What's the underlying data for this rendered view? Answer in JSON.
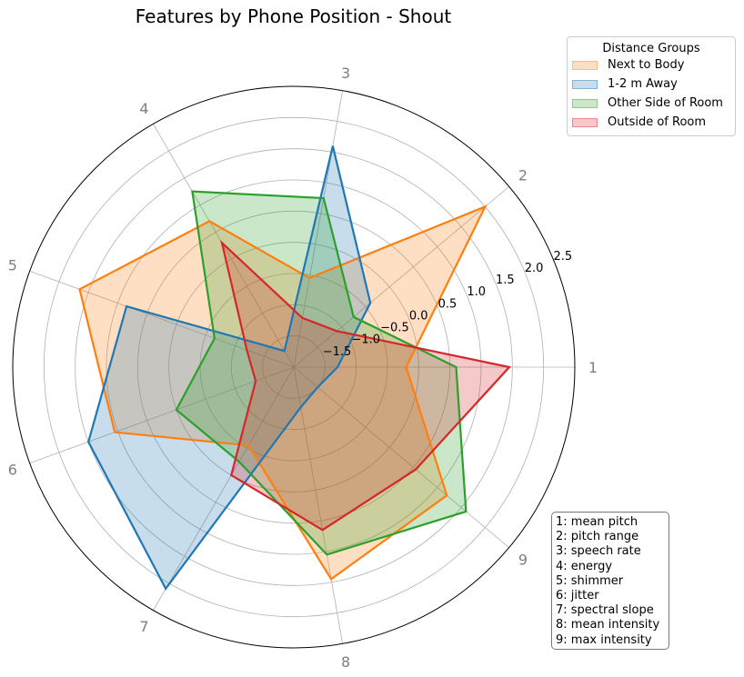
{
  "chart_data": {
    "type": "radar",
    "title": "Features by Phone Position - Shout",
    "axes": [
      "1",
      "2",
      "3",
      "4",
      "5",
      "6",
      "7",
      "8",
      "9"
    ],
    "radial_range": [
      -2.0,
      2.5
    ],
    "radial_ticks": [
      "−1.5",
      "−1.0",
      "−0.5",
      "0.0",
      "0.5",
      "1.0",
      "1.5",
      "2.0",
      "2.5"
    ],
    "radial_tick_values": [
      -1.5,
      -1.0,
      -0.5,
      0.0,
      0.5,
      1.0,
      1.5,
      2.0,
      2.5
    ],
    "grid": true,
    "legend": {
      "title": "Distance Groups",
      "placement": "top-right"
    },
    "series": [
      {
        "name": "Next to Body",
        "color": "#ff7f0e",
        "values": [
          -0.2,
          2.0,
          -0.55,
          0.7,
          1.65,
          1.05,
          -0.55,
          1.45,
          1.2
        ]
      },
      {
        "name": "1-2 m Away",
        "color": "#1f77b4",
        "values": [
          -1.3,
          -0.4,
          1.6,
          -1.7,
          0.85,
          1.5,
          2.1,
          -1.35,
          -1.5
        ]
      },
      {
        "name": "Other Side of Room",
        "color": "#2ca02c",
        "values": [
          0.6,
          -0.75,
          0.75,
          1.25,
          -0.65,
          0.0,
          -0.25,
          1.05,
          1.6
        ]
      },
      {
        "name": "Outside of Room",
        "color": "#d62728",
        "values": [
          1.45,
          -1.1,
          -1.2,
          0.3,
          -1.2,
          -1.35,
          0.0,
          0.65,
          0.55
        ]
      }
    ],
    "feature_key": [
      "1: mean pitch",
      "2: pitch range",
      "3: speech rate",
      "4: energy",
      "5: shimmer",
      "6: jitter",
      "7: spectral slope",
      "8: mean intensity",
      "9: max intensity"
    ]
  }
}
